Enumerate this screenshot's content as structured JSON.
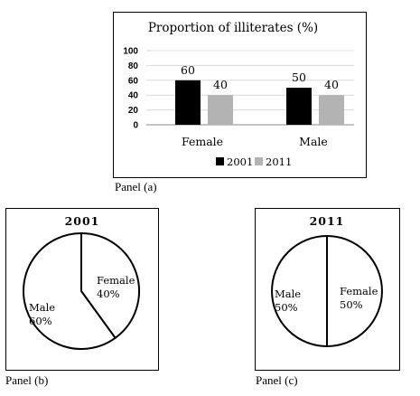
{
  "chart_data": [
    {
      "type": "bar",
      "title": "Proportion of illiterates (%)",
      "categories": [
        "Female",
        "Male"
      ],
      "series": [
        {
          "name": "2001",
          "values": [
            60,
            50
          ],
          "color": "#000000"
        },
        {
          "name": "2011",
          "values": [
            40,
            40
          ],
          "color": "#b3b3b3"
        }
      ],
      "ylim": [
        0,
        100
      ],
      "yticks": [
        "0",
        "20",
        "40",
        "60",
        "80",
        "100"
      ],
      "grid": true,
      "legend": "bottom",
      "caption": "Panel (a)"
    },
    {
      "type": "pie",
      "title": "2001",
      "slices": [
        {
          "label": "Female",
          "value": 40,
          "text": "40%"
        },
        {
          "label": "Male",
          "value": 60,
          "text": "60%"
        }
      ],
      "caption": "Panel (b)"
    },
    {
      "type": "pie",
      "title": "2011",
      "slices": [
        {
          "label": "Female",
          "value": 50,
          "text": "50%"
        },
        {
          "label": "Male",
          "value": 50,
          "text": "50%"
        }
      ],
      "caption": "Panel (c)"
    }
  ]
}
